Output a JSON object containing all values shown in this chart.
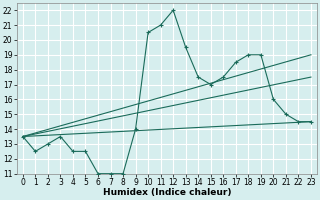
{
  "xlabel": "Humidex (Indice chaleur)",
  "bg_color": "#d6eeee",
  "line_color": "#1a6b5a",
  "grid_color": "#ffffff",
  "xlim": [
    -0.5,
    23.5
  ],
  "ylim": [
    11,
    22.5
  ],
  "xticks": [
    0,
    1,
    2,
    3,
    4,
    5,
    6,
    7,
    8,
    9,
    10,
    11,
    12,
    13,
    14,
    15,
    16,
    17,
    18,
    19,
    20,
    21,
    22,
    23
  ],
  "yticks": [
    11,
    12,
    13,
    14,
    15,
    16,
    17,
    18,
    19,
    20,
    21,
    22
  ],
  "line1_x": [
    0,
    1,
    2,
    3,
    4,
    5,
    6,
    7,
    8,
    9,
    10,
    11,
    12,
    13,
    14,
    15,
    16,
    17,
    18,
    19,
    20,
    21,
    22,
    23
  ],
  "line1_y": [
    13.5,
    12.5,
    13,
    13.5,
    12.5,
    12.5,
    11,
    11,
    11,
    14,
    20.5,
    21,
    22,
    19.5,
    17.5,
    17,
    17.5,
    18.5,
    19,
    19,
    16,
    15,
    14.5,
    14.5
  ],
  "line2_x": [
    0,
    23
  ],
  "line2_y": [
    13.5,
    19
  ],
  "line3_x": [
    0,
    23
  ],
  "line3_y": [
    13.5,
    17.5
  ],
  "line4_x": [
    0,
    23
  ],
  "line4_y": [
    13.5,
    14.5
  ],
  "tick_fontsize": 5.5,
  "xlabel_fontsize": 6.5
}
